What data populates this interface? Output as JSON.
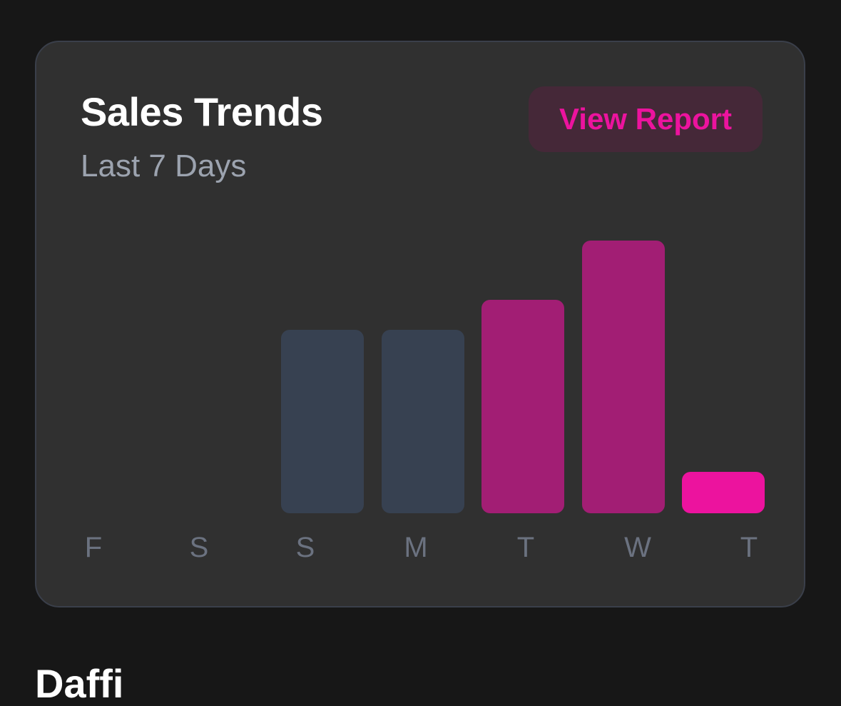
{
  "card": {
    "title": "Sales Trends",
    "subtitle": "Last 7 Days",
    "view_report_label": "View Report"
  },
  "colors": {
    "background": "#171717",
    "card": "#303030",
    "past_bar": "#374151",
    "highlight_bar": "#a21e74",
    "today_bar": "#ec139e",
    "accent": "#ec139e"
  },
  "chart_data": {
    "type": "bar",
    "categories": [
      "F",
      "S",
      "S",
      "M",
      "T",
      "W",
      "T"
    ],
    "values": [
      0,
      0,
      62,
      62,
      72,
      92,
      14
    ],
    "bar_colors": [
      "#374151",
      "#374151",
      "#374151",
      "#374151",
      "#a21e74",
      "#a21e74",
      "#ec139e"
    ],
    "ylim": [
      0,
      100
    ],
    "grid": false,
    "title": "",
    "xlabel": "",
    "ylabel": ""
  },
  "below": {
    "heading_fragment": "Daffi"
  }
}
